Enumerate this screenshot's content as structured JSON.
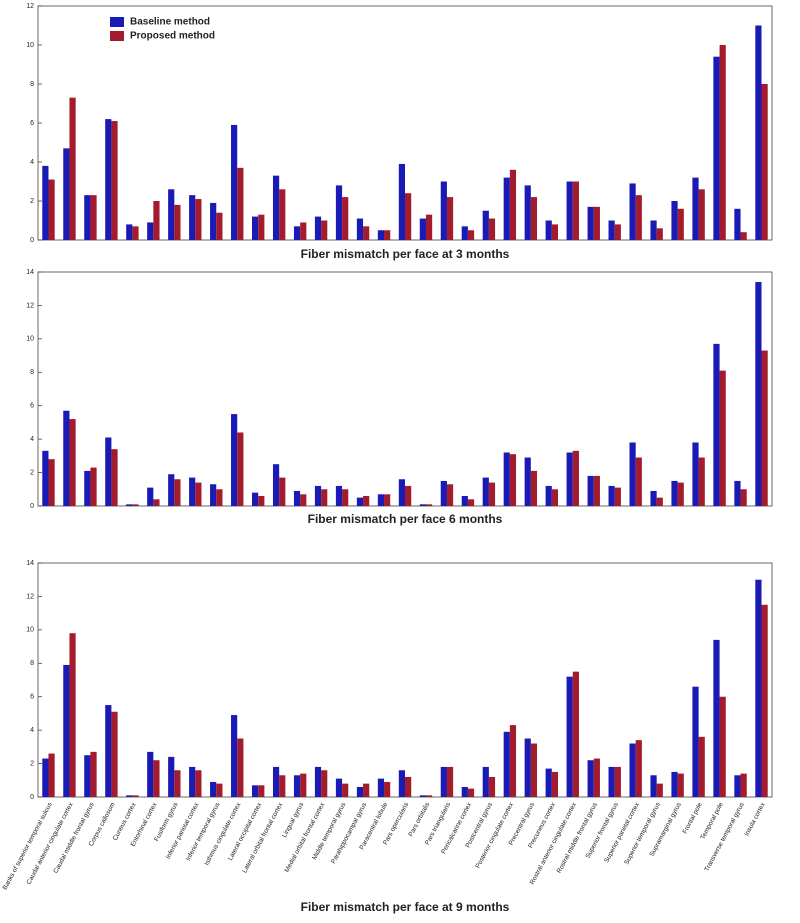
{
  "chart_data": [
    {
      "type": "bar",
      "title": "Fiber mismatch per face at 3 months",
      "ylim": [
        0,
        12
      ],
      "yticks": [
        0,
        2,
        4,
        6,
        8,
        10,
        12
      ],
      "legend": "upper left",
      "series": [
        {
          "name": "Baseline method",
          "color": "#1a1ab4",
          "values": [
            3.8,
            4.7,
            2.3,
            6.2,
            0.8,
            0.9,
            2.6,
            2.3,
            1.9,
            5.9,
            1.2,
            3.3,
            0.7,
            1.2,
            2.8,
            1.1,
            0.5,
            3.9,
            1.1,
            3.0,
            0.7,
            1.5,
            3.2,
            2.8,
            1.0,
            3.0,
            1.7,
            1.0,
            2.9,
            1.0,
            2.0,
            3.2,
            9.4,
            1.6,
            11.0
          ]
        },
        {
          "name": "Proposed method",
          "color": "#a31c2e",
          "values": [
            3.1,
            7.3,
            2.3,
            6.1,
            0.7,
            2.0,
            1.8,
            2.1,
            1.4,
            3.7,
            1.3,
            2.6,
            0.9,
            1.0,
            2.2,
            0.7,
            0.5,
            2.4,
            1.3,
            2.2,
            0.5,
            1.1,
            3.6,
            2.2,
            0.8,
            3.0,
            1.7,
            0.8,
            2.3,
            0.6,
            1.6,
            2.6,
            10.0,
            0.4,
            8.0
          ]
        }
      ]
    },
    {
      "type": "bar",
      "title": "Fiber mismatch per face 6 months",
      "ylim": [
        0,
        14
      ],
      "yticks": [
        0,
        2,
        4,
        6,
        8,
        10,
        12,
        14
      ],
      "series": [
        {
          "color": "#1a1ab4",
          "values": [
            3.3,
            5.7,
            2.1,
            4.1,
            0.1,
            1.1,
            1.9,
            1.7,
            1.3,
            5.5,
            0.8,
            2.5,
            0.9,
            1.2,
            1.2,
            0.5,
            0.7,
            1.6,
            0.1,
            1.5,
            0.6,
            1.7,
            3.2,
            2.9,
            1.2,
            3.2,
            1.8,
            1.2,
            3.8,
            0.9,
            1.5,
            3.8,
            9.7,
            1.5,
            13.4
          ]
        },
        {
          "color": "#a31c2e",
          "values": [
            2.8,
            5.2,
            2.3,
            3.4,
            0.1,
            0.4,
            1.6,
            1.4,
            1.0,
            4.4,
            0.6,
            1.7,
            0.7,
            1.0,
            1.0,
            0.6,
            0.7,
            1.2,
            0.1,
            1.3,
            0.4,
            1.4,
            3.1,
            2.1,
            1.0,
            3.3,
            1.8,
            1.1,
            2.9,
            0.5,
            1.4,
            2.9,
            8.1,
            1.0,
            9.3
          ]
        }
      ]
    },
    {
      "type": "bar",
      "title": "Fiber mismatch per face at 9 months",
      "ylim": [
        0,
        14
      ],
      "yticks": [
        0,
        2,
        4,
        6,
        8,
        10,
        12,
        14
      ],
      "categories": [
        "Banks of superior temporal sulcus",
        "Caudal anterior cingulate cortex",
        "Caudal middle frontal gyrus",
        "Corpus callosum",
        "Cuneus cortex",
        "Entorhinal cortex",
        "Fusiform gyrus",
        "Inferior parietal cortex",
        "Inferior temporal gyrus",
        "Isthmus cingulate cortex",
        "Lateral occipital cortex",
        "Lateral orbital frontal cortex",
        "Lingual gyrus",
        "Medial orbital frontal cortex",
        "Middle temporal gyrus",
        "Parahippocampal gyrus",
        "Paracentral lobule",
        "Pars opercularis",
        "Pars orbitalis",
        "Pars triangularis",
        "Pericalcarine cortex",
        "Postcentral gyrus",
        "Posterior cingulate cortex",
        "Precentral gyrus",
        "Precuneus cortex",
        "Rostral anterior cingulate cortex",
        "Rostral middle frontal gyrus",
        "Superior frontal gyrus",
        "Superior parietal cortex",
        "Superior temporal gyrus",
        "Supramarginal gyrus",
        "Frontal pole",
        "Temporal pole",
        "Transverse temporal gyrus",
        "Insula cortex"
      ],
      "series": [
        {
          "color": "#1a1ab4",
          "values": [
            2.3,
            7.9,
            2.5,
            5.5,
            0.1,
            2.7,
            2.4,
            1.8,
            0.9,
            4.9,
            0.7,
            1.8,
            1.3,
            1.8,
            1.1,
            0.6,
            1.1,
            1.6,
            0.1,
            1.8,
            0.6,
            1.8,
            3.9,
            3.5,
            1.7,
            7.2,
            2.2,
            1.8,
            3.2,
            1.3,
            1.5,
            6.6,
            9.4,
            1.3,
            13.0
          ]
        },
        {
          "color": "#a31c2e",
          "values": [
            2.6,
            9.8,
            2.7,
            5.1,
            0.1,
            2.2,
            1.6,
            1.6,
            0.8,
            3.5,
            0.7,
            1.3,
            1.4,
            1.6,
            0.8,
            0.8,
            0.9,
            1.2,
            0.1,
            1.8,
            0.5,
            1.2,
            4.3,
            3.2,
            1.5,
            7.5,
            2.3,
            1.8,
            3.4,
            0.8,
            1.4,
            3.6,
            6.0,
            1.4,
            11.5
          ]
        }
      ]
    }
  ]
}
